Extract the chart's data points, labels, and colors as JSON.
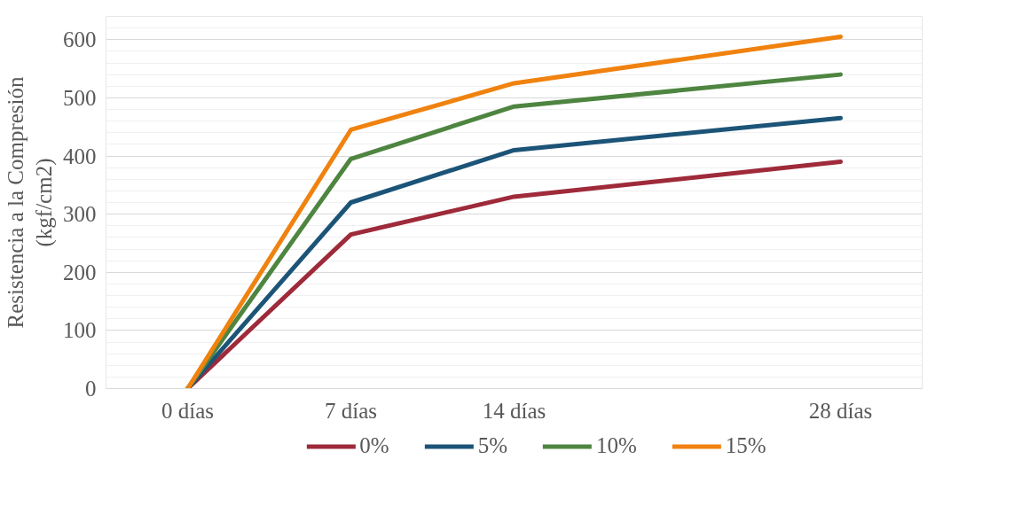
{
  "chart_data": {
    "type": "line",
    "ylabel": "Resistencia a la Compresión\n(kgf/cm2)",
    "x": [
      0,
      7,
      14,
      28
    ],
    "xlim": [
      -3.5,
      31.5
    ],
    "xticks": [
      {
        "value": 0,
        "label": "0 días"
      },
      {
        "value": 7,
        "label": "7 días"
      },
      {
        "value": 14,
        "label": "14 días"
      },
      {
        "value": 28,
        "label": "28 días"
      }
    ],
    "ylim": [
      0,
      640
    ],
    "yticks": [
      0,
      100,
      200,
      300,
      400,
      500,
      600
    ],
    "grid": "y",
    "legend": "bottom",
    "series": [
      {
        "name": "0%",
        "color": "#9e2a3a",
        "values": [
          0,
          265,
          330,
          390
        ]
      },
      {
        "name": "5%",
        "color": "#1c5478",
        "values": [
          0,
          320,
          410,
          465
        ]
      },
      {
        "name": "10%",
        "color": "#4e8540",
        "values": [
          0,
          395,
          485,
          540
        ]
      },
      {
        "name": "15%",
        "color": "#f0820f",
        "values": [
          0,
          445,
          525,
          605
        ]
      }
    ]
  }
}
